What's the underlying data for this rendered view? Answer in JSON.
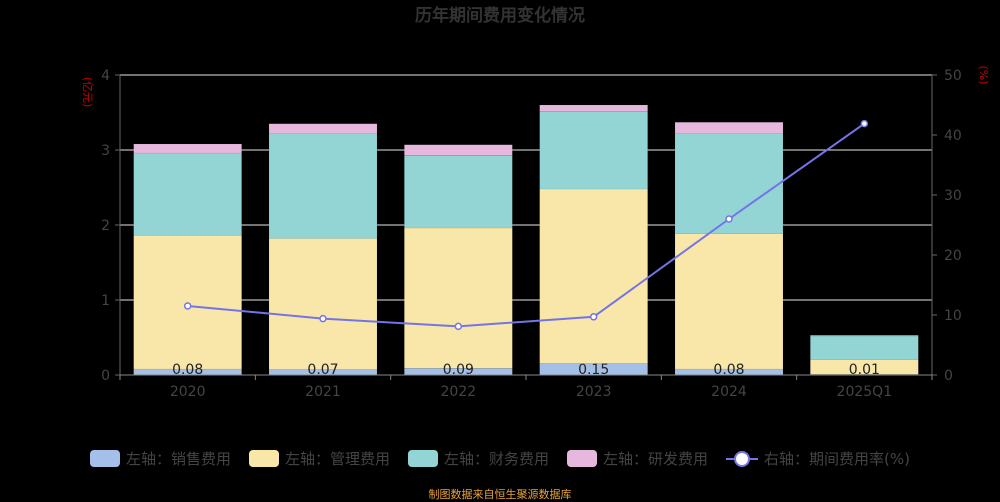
{
  "chart_data": {
    "type": "bar",
    "title": "历年期间费用变化情况",
    "stacked": true,
    "categories": [
      "2020",
      "2021",
      "2022",
      "2023",
      "2024",
      "2025Q1"
    ],
    "left_axis": {
      "unit": "(亿元)",
      "ylim": [
        0,
        4
      ],
      "ticks": [
        "0",
        "1",
        "2",
        "3",
        "4"
      ]
    },
    "right_axis": {
      "unit": "(%)",
      "ylim": [
        0,
        50
      ],
      "ticks": [
        "0",
        "10",
        "20",
        "30",
        "40",
        "50"
      ]
    },
    "series": [
      {
        "name": "左轴：销售费用",
        "axis": "left",
        "color": "#a4bfe8",
        "values": [
          0.08,
          0.07,
          0.09,
          0.15,
          0.08,
          0.01
        ],
        "labels": [
          "0.08",
          "0.07",
          "0.09",
          "0.15",
          "0.08",
          "0.01"
        ]
      },
      {
        "name": "左轴：管理费用",
        "axis": "left",
        "color": "#f8e7a8",
        "values": [
          1.78,
          1.75,
          1.87,
          2.33,
          1.81,
          0.2
        ]
      },
      {
        "name": "左轴：财务费用",
        "axis": "left",
        "color": "#93d4d4",
        "values": [
          1.1,
          1.4,
          0.97,
          1.03,
          1.33,
          0.31
        ]
      },
      {
        "name": "左轴：研发费用",
        "axis": "left",
        "color": "#e6b8dd",
        "values": [
          0.12,
          0.13,
          0.14,
          0.09,
          0.15,
          0.01
        ]
      },
      {
        "name": "右轴：期间费用率(%)",
        "axis": "right",
        "type": "line",
        "color": "#7474e8",
        "values": [
          11.5,
          9.4,
          8.1,
          9.7,
          26,
          41.9
        ]
      }
    ],
    "legend_position": "bottom",
    "grid": true
  },
  "source": "制图数据来自恒生聚源数据库"
}
